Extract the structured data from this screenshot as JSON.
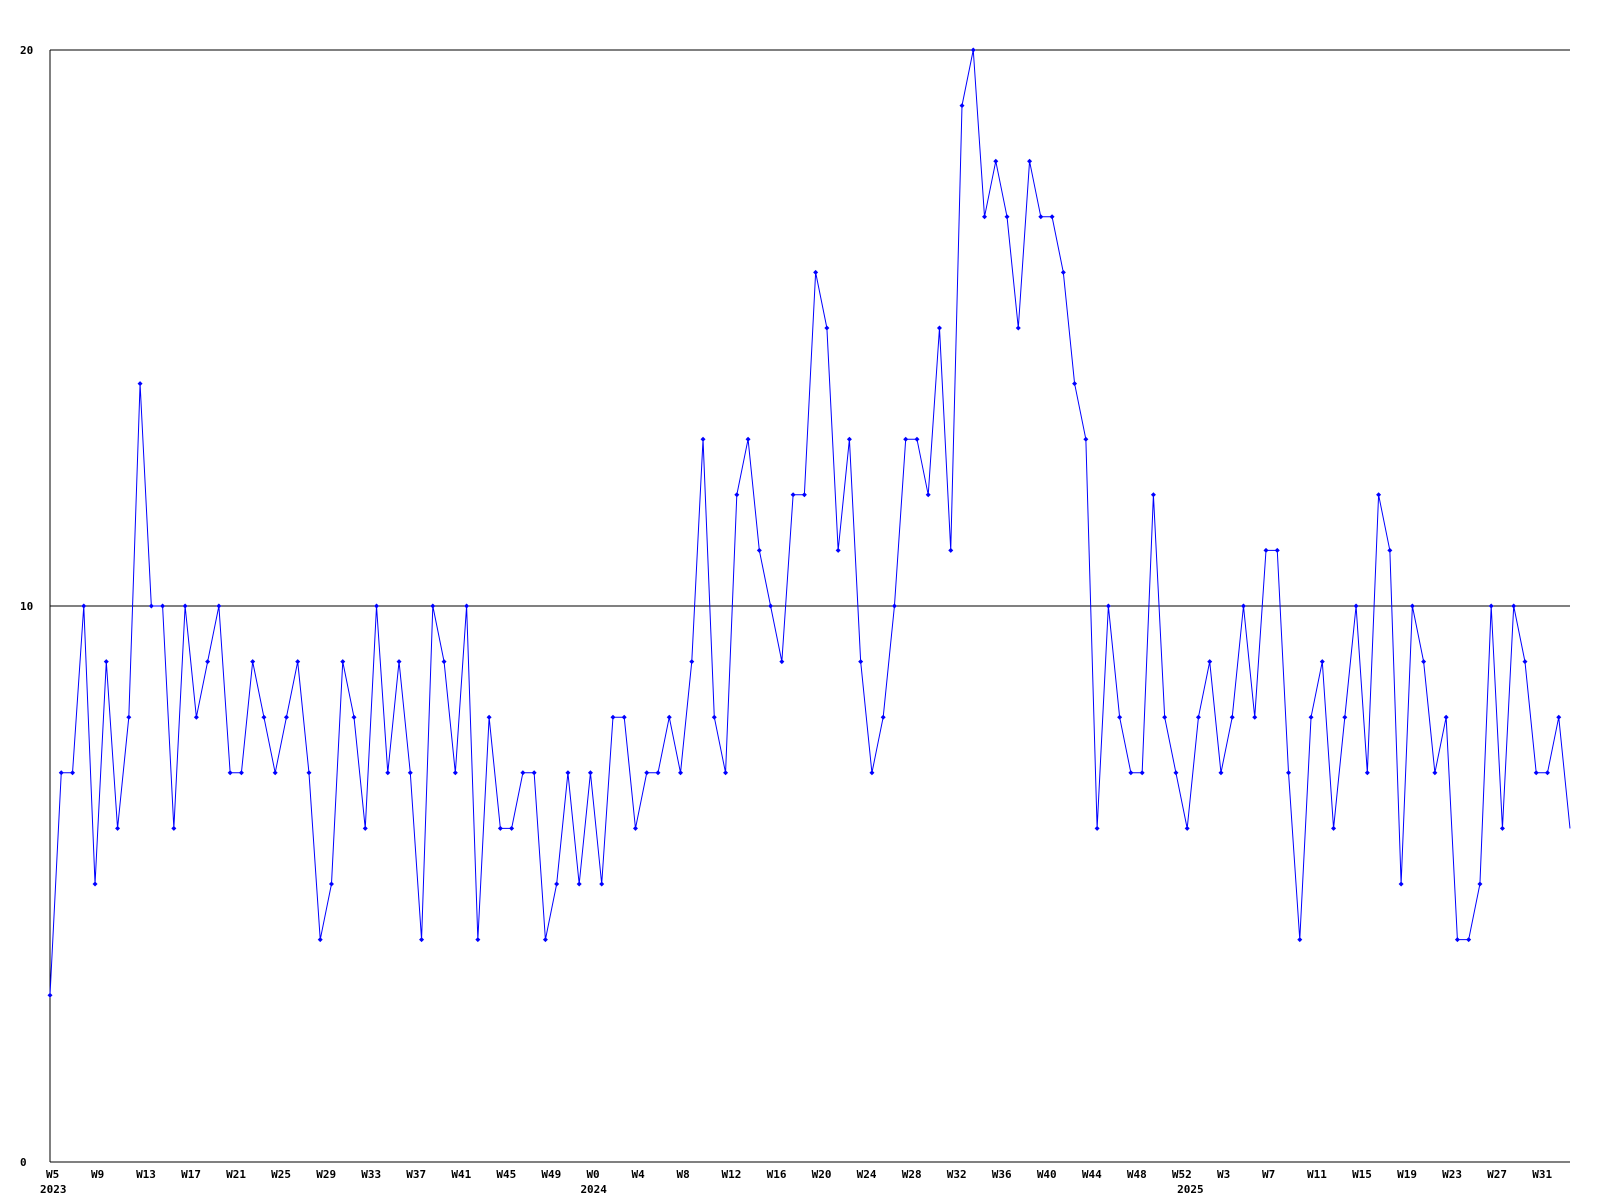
{
  "chart_data": {
    "type": "line",
    "categories": [
      "W5",
      null,
      null,
      null,
      "W9",
      null,
      null,
      null,
      "W13",
      null,
      null,
      null,
      "W17",
      null,
      null,
      null,
      "W21",
      null,
      null,
      null,
      "W25",
      null,
      null,
      null,
      "W29",
      null,
      null,
      null,
      "W33",
      null,
      null,
      null,
      "W37",
      null,
      null,
      null,
      "W41",
      null,
      null,
      null,
      "W45",
      null,
      null,
      null,
      "W49",
      null,
      null,
      null,
      "W0",
      null,
      null,
      null,
      "W4",
      null,
      null,
      null,
      "W8",
      null,
      null,
      null,
      "W12",
      null,
      null,
      null,
      "W16",
      null,
      null,
      null,
      "W20",
      null,
      null,
      null,
      "W24",
      null,
      null,
      null,
      "W28",
      null,
      null,
      null,
      "W32",
      null,
      null,
      null,
      "W36",
      null,
      null,
      null,
      "W40",
      null,
      null,
      null,
      "W44",
      null,
      null,
      null,
      "W48",
      null,
      null,
      null,
      "W52",
      null,
      null,
      null,
      "W3",
      null,
      null,
      null,
      "W7",
      null,
      null,
      null,
      "W11",
      null,
      null,
      null,
      "W15",
      null,
      null,
      null,
      "W19",
      null,
      null,
      null,
      "W23",
      null,
      null,
      null,
      "W27",
      null,
      null,
      null,
      "W31",
      null,
      null,
      null
    ],
    "year_labels": [
      {
        "index": 0,
        "label": "2023"
      },
      {
        "index": 48,
        "label": "2024"
      },
      {
        "index": 101,
        "label": "2025"
      }
    ],
    "series": [
      {
        "color": "#0000ff",
        "values": [
          3,
          7,
          7,
          10,
          5,
          9,
          6,
          8,
          14,
          10,
          10,
          6,
          10,
          8,
          9,
          10,
          7,
          7,
          9,
          8,
          7,
          8,
          9,
          7,
          4,
          5,
          9,
          8,
          6,
          10,
          7,
          9,
          7,
          4,
          10,
          9,
          7,
          10,
          4,
          8,
          6,
          6,
          7,
          7,
          4,
          5,
          7,
          5,
          7,
          5,
          8,
          8,
          6,
          7,
          7,
          8,
          7,
          9,
          13,
          8,
          7,
          12,
          13,
          11,
          10,
          9,
          12,
          12,
          16,
          15,
          11,
          13,
          9,
          7,
          8,
          10,
          13,
          13,
          12,
          15,
          11,
          19,
          20,
          17,
          18,
          17,
          15,
          18,
          17,
          17,
          16,
          14,
          13,
          6,
          10,
          8,
          7,
          7,
          12,
          8,
          7,
          6,
          8,
          9,
          7,
          8,
          10,
          8,
          11,
          11,
          7,
          4,
          8,
          9,
          6,
          8,
          10,
          7,
          12,
          11,
          5,
          10,
          9,
          7,
          8,
          4,
          4,
          5,
          10,
          6,
          10,
          9,
          7,
          7,
          8,
          6
        ]
      }
    ],
    "ylim": [
      0,
      20
    ],
    "yticks": [
      0,
      10,
      20
    ],
    "grid": true
  }
}
